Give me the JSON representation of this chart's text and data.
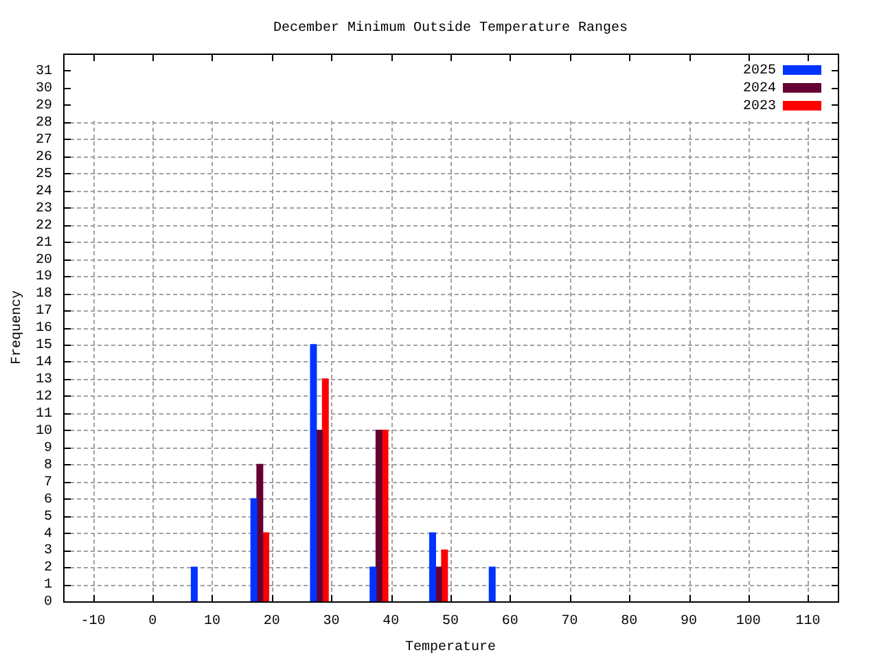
{
  "chart_data": {
    "type": "bar",
    "title": "December Minimum Outside Temperature Ranges",
    "xlabel": "Temperature",
    "ylabel": "Frequency",
    "series": [
      {
        "name": "2025",
        "color": "#0033ff",
        "x": [
          7,
          17,
          27,
          37,
          47,
          57
        ],
        "values": [
          2,
          6,
          15,
          2,
          4,
          2
        ]
      },
      {
        "name": "2024",
        "color": "#660033",
        "x": [
          18,
          28,
          38,
          48
        ],
        "values": [
          8,
          10,
          10,
          2
        ]
      },
      {
        "name": "2023",
        "color": "#ff0000",
        "x": [
          19,
          29,
          39,
          49
        ],
        "values": [
          4,
          13,
          10,
          3
        ]
      }
    ],
    "xlim": [
      -10,
      110
    ],
    "xticks": [
      -10,
      0,
      10,
      20,
      30,
      40,
      50,
      60,
      70,
      80,
      90,
      100,
      110
    ],
    "ylim": [
      0,
      32
    ],
    "yticks": [
      0,
      1,
      2,
      3,
      4,
      5,
      6,
      7,
      8,
      9,
      10,
      11,
      12,
      13,
      14,
      15,
      16,
      17,
      18,
      19,
      20,
      21,
      22,
      23,
      24,
      25,
      26,
      27,
      28,
      29,
      30,
      31
    ],
    "grid": true,
    "legend": "top right"
  }
}
